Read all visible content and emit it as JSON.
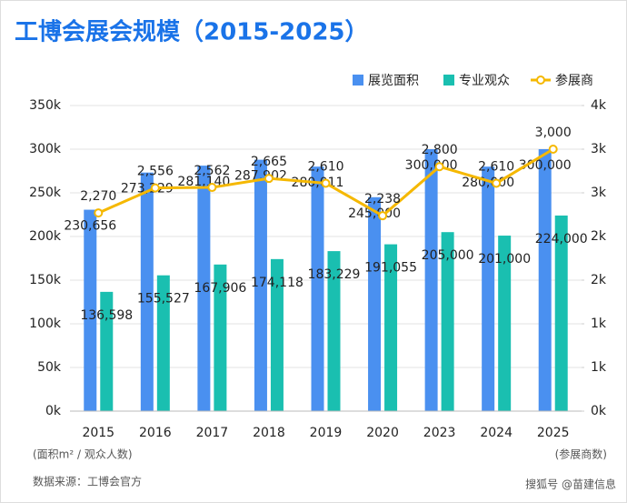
{
  "chart_data": {
    "type": "bar-line",
    "title": "工博会展会规模（2015-2025）",
    "categories": [
      "2015",
      "2016",
      "2017",
      "2018",
      "2019",
      "2020",
      "2023",
      "2024",
      "2025"
    ],
    "series": [
      {
        "name": "展览面积",
        "type": "bar",
        "color": "#4a90f0",
        "values": [
          230656,
          273229,
          281140,
          287902,
          280011,
          245000,
          300000,
          280000,
          300000
        ],
        "value_labels": [
          "230,656",
          "273,229",
          "281,140",
          "287,902",
          "280,011",
          "245,000",
          "300,000",
          "280,000",
          "300,000"
        ]
      },
      {
        "name": "专业观众",
        "type": "bar",
        "color": "#1abfb0",
        "values": [
          136598,
          155527,
          167906,
          174118,
          183229,
          191055,
          205000,
          201000,
          224000
        ],
        "value_labels": [
          "136,598",
          "155,527",
          "167,906",
          "174,118",
          "183,229",
          "191,055",
          "205,000",
          "201,000",
          "224,000"
        ]
      },
      {
        "name": "参展商",
        "type": "line",
        "axis": "y2",
        "color": "#f5b800",
        "values": [
          2270,
          2556,
          2562,
          2665,
          2610,
          2238,
          2800,
          2610,
          3000
        ],
        "value_labels": [
          "2,270",
          "2,556",
          "2,562",
          "2,665",
          "2,610",
          "2,238",
          "2,800",
          "2,610",
          "3,000"
        ]
      }
    ],
    "ylim": [
      0,
      350000
    ],
    "yticks": [
      {
        "value": 0,
        "label": "0k"
      },
      {
        "value": 50000,
        "label": "50k"
      },
      {
        "value": 100000,
        "label": "100k"
      },
      {
        "value": 150000,
        "label": "150k"
      },
      {
        "value": 200000,
        "label": "200k"
      },
      {
        "value": 250000,
        "label": "250k"
      },
      {
        "value": 300000,
        "label": "300k"
      },
      {
        "value": 350000,
        "label": "350k"
      }
    ],
    "y2lim": [
      0,
      3500
    ],
    "y2ticks": [
      {
        "value": 0,
        "label": "0k"
      },
      {
        "value": 500,
        "label": "1k"
      },
      {
        "value": 1000,
        "label": "1k"
      },
      {
        "value": 1500,
        "label": "2k"
      },
      {
        "value": 2000,
        "label": "2k"
      },
      {
        "value": 2500,
        "label": "3k"
      },
      {
        "value": 3000,
        "label": "3k"
      },
      {
        "value": 3500,
        "label": "4k"
      }
    ],
    "y_axis_label": "(面积m² / 观众人数)",
    "y2_axis_label": "(参展商数)",
    "source": "数据来源：工博会官方",
    "credit": "搜狐号 @苗建信息",
    "grid": true,
    "legend": "top-right"
  }
}
